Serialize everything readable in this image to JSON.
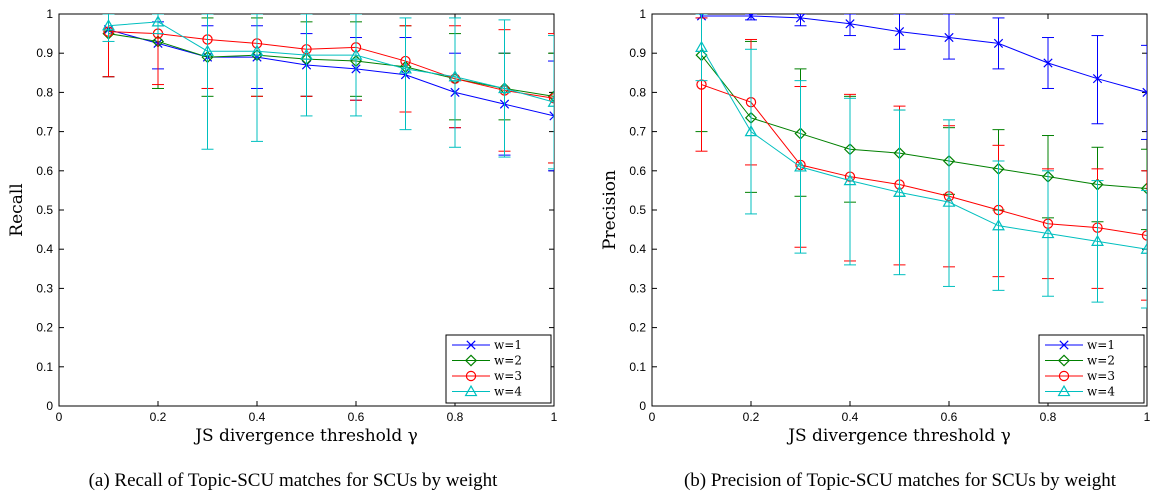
{
  "figure": {
    "captions": [
      "(a)  Recall of Topic-SCU matches for SCUs by weight",
      "(b)  Precision of Topic-SCU matches for SCUs by weight"
    ]
  },
  "chart_data": [
    {
      "type": "line",
      "title": "",
      "xlabel": "JS divergence threshold γ",
      "ylabel": "Recall",
      "xlim": [
        0,
        1
      ],
      "ylim": [
        0,
        1
      ],
      "xticks": [
        "0",
        "0.2",
        "0.4",
        "0.6",
        "0.8",
        "1"
      ],
      "yticks": [
        "0",
        "0.1",
        "0.2",
        "0.3",
        "0.4",
        "0.5",
        "0.6",
        "0.7",
        "0.8",
        "0.9",
        "1"
      ],
      "grid": false,
      "legend_position": "bottom-right",
      "x": [
        0.1,
        0.2,
        0.3,
        0.4,
        0.5,
        0.6,
        0.7,
        0.8,
        0.9,
        1.0
      ],
      "series": [
        {
          "name": "w=1",
          "color": "#0000ff",
          "marker": "x",
          "values": [
            0.96,
            0.925,
            0.89,
            0.89,
            0.87,
            0.86,
            0.845,
            0.8,
            0.77,
            0.74
          ],
          "err_low": [
            0.84,
            0.86,
            0.81,
            0.81,
            0.79,
            0.78,
            0.75,
            0.71,
            0.64,
            0.6
          ],
          "err_high": [
            1.0,
            0.98,
            0.97,
            0.97,
            0.95,
            0.94,
            0.94,
            0.9,
            0.9,
            0.88
          ]
        },
        {
          "name": "w=2",
          "color": "#008000",
          "marker": "diamond",
          "values": [
            0.95,
            0.93,
            0.89,
            0.895,
            0.885,
            0.88,
            0.865,
            0.835,
            0.81,
            0.79
          ],
          "err_low": [
            0.84,
            0.81,
            0.79,
            0.79,
            0.79,
            0.79,
            0.75,
            0.73,
            0.73,
            0.62
          ],
          "err_high": [
            1.0,
            1.0,
            0.99,
            0.99,
            0.98,
            0.98,
            0.97,
            0.95,
            0.9,
            0.9
          ]
        },
        {
          "name": "w=3",
          "color": "#ff0000",
          "marker": "circle",
          "values": [
            0.955,
            0.95,
            0.935,
            0.925,
            0.91,
            0.915,
            0.88,
            0.835,
            0.805,
            0.785
          ],
          "err_low": [
            0.84,
            0.82,
            0.81,
            0.79,
            0.79,
            0.78,
            0.75,
            0.71,
            0.65,
            0.62
          ],
          "err_high": [
            1.0,
            1.0,
            1.0,
            1.0,
            1.0,
            1.0,
            0.97,
            0.97,
            0.96,
            0.95
          ]
        },
        {
          "name": "w=4",
          "color": "#00bfbf",
          "marker": "triangle",
          "values": [
            0.97,
            0.98,
            0.905,
            0.905,
            0.895,
            0.895,
            0.86,
            0.84,
            0.81,
            0.775
          ],
          "err_low": [
            0.93,
            0.95,
            0.655,
            0.675,
            0.74,
            0.74,
            0.705,
            0.66,
            0.635,
            0.605
          ],
          "err_high": [
            1.0,
            1.0,
            1.0,
            1.0,
            1.0,
            1.0,
            0.99,
            0.99,
            0.985,
            0.945
          ]
        }
      ]
    },
    {
      "type": "line",
      "title": "",
      "xlabel": "JS divergence threshold γ",
      "ylabel": "Precision",
      "xlim": [
        0,
        1
      ],
      "ylim": [
        0,
        1
      ],
      "xticks": [
        "0",
        "0.2",
        "0.4",
        "0.6",
        "0.8",
        "1"
      ],
      "yticks": [
        "0",
        "0.1",
        "0.2",
        "0.3",
        "0.4",
        "0.5",
        "0.6",
        "0.7",
        "0.8",
        "0.9",
        "1"
      ],
      "grid": false,
      "legend_position": "bottom-right",
      "x": [
        0.1,
        0.2,
        0.3,
        0.4,
        0.5,
        0.6,
        0.7,
        0.8,
        0.9,
        1.0
      ],
      "series": [
        {
          "name": "w=1",
          "color": "#0000ff",
          "marker": "x",
          "values": [
            0.995,
            0.995,
            0.99,
            0.975,
            0.955,
            0.94,
            0.925,
            0.875,
            0.835,
            0.8
          ],
          "err_low": [
            0.99,
            0.985,
            0.97,
            0.945,
            0.91,
            0.885,
            0.86,
            0.81,
            0.72,
            0.68
          ],
          "err_high": [
            1.0,
            1.0,
            1.0,
            1.0,
            1.0,
            1.0,
            0.99,
            0.94,
            0.945,
            0.92
          ]
        },
        {
          "name": "w=2",
          "color": "#008000",
          "marker": "diamond",
          "values": [
            0.895,
            0.735,
            0.695,
            0.655,
            0.645,
            0.625,
            0.605,
            0.585,
            0.565,
            0.555
          ],
          "err_low": [
            0.7,
            0.545,
            0.535,
            0.52,
            0.535,
            0.54,
            0.5,
            0.48,
            0.47,
            0.45
          ],
          "err_high": [
            1.0,
            0.93,
            0.86,
            0.79,
            0.755,
            0.71,
            0.705,
            0.69,
            0.66,
            0.655
          ]
        },
        {
          "name": "w=3",
          "color": "#ff0000",
          "marker": "circle",
          "values": [
            0.82,
            0.775,
            0.615,
            0.585,
            0.565,
            0.535,
            0.5,
            0.465,
            0.455,
            0.435
          ],
          "err_low": [
            0.65,
            0.615,
            0.405,
            0.37,
            0.36,
            0.355,
            0.33,
            0.325,
            0.3,
            0.27
          ],
          "err_high": [
            0.99,
            0.935,
            0.815,
            0.795,
            0.765,
            0.715,
            0.665,
            0.605,
            0.605,
            0.6
          ]
        },
        {
          "name": "w=4",
          "color": "#00bfbf",
          "marker": "triangle",
          "values": [
            0.915,
            0.7,
            0.61,
            0.575,
            0.545,
            0.52,
            0.46,
            0.44,
            0.42,
            0.4
          ],
          "err_low": [
            0.83,
            0.49,
            0.39,
            0.36,
            0.335,
            0.305,
            0.295,
            0.28,
            0.265,
            0.25
          ],
          "err_high": [
            1.0,
            0.91,
            0.83,
            0.785,
            0.755,
            0.73,
            0.625,
            0.6,
            0.575,
            0.55
          ]
        }
      ]
    }
  ]
}
